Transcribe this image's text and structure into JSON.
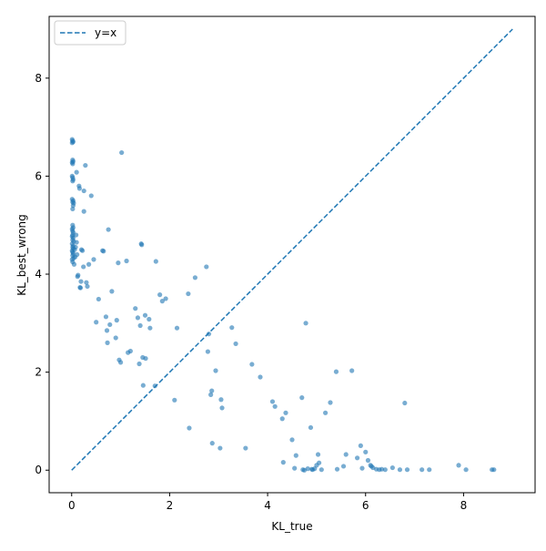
{
  "chart_data": {
    "type": "scatter",
    "title": "",
    "xlabel": "KL_true",
    "ylabel": "KL_best_wrong",
    "xlim": [
      -0.46,
      9.46
    ],
    "ylim": [
      -0.46,
      9.26
    ],
    "xticks": [
      0,
      2,
      4,
      6,
      8
    ],
    "yticks": [
      0,
      2,
      4,
      6,
      8
    ],
    "grid": false,
    "legend": {
      "position": "top-left",
      "entries": [
        "y=x"
      ]
    },
    "colors": {
      "points": "#1f77b4",
      "reference_line": "#1f77b4"
    },
    "reference_line": {
      "name": "y=x",
      "style": "dashed",
      "x": [
        0,
        9
      ],
      "y": [
        0,
        9
      ]
    },
    "series": [
      {
        "type": "scatter",
        "points": [
          [
            0.01,
            6.75
          ],
          [
            0.02,
            6.72
          ],
          [
            0.03,
            6.7
          ],
          [
            0.01,
            6.68
          ],
          [
            0.02,
            6.33
          ],
          [
            0.03,
            6.3
          ],
          [
            0.01,
            6.28
          ],
          [
            0.02,
            6.25
          ],
          [
            0.01,
            6.0
          ],
          [
            0.02,
            5.97
          ],
          [
            0.03,
            5.93
          ],
          [
            0.02,
            5.9
          ],
          [
            0.01,
            5.53
          ],
          [
            0.03,
            5.5
          ],
          [
            0.02,
            5.47
          ],
          [
            0.04,
            5.45
          ],
          [
            0.03,
            5.4
          ],
          [
            0.02,
            5.33
          ],
          [
            0.02,
            5.0
          ],
          [
            0.03,
            4.95
          ],
          [
            0.01,
            4.92
          ],
          [
            0.02,
            4.88
          ],
          [
            0.03,
            4.85
          ],
          [
            0.02,
            4.8
          ],
          [
            0.01,
            4.77
          ],
          [
            0.03,
            4.74
          ],
          [
            0.02,
            4.7
          ],
          [
            0.04,
            4.67
          ],
          [
            0.01,
            4.62
          ],
          [
            0.03,
            4.58
          ],
          [
            0.02,
            4.55
          ],
          [
            0.03,
            4.52
          ],
          [
            0.01,
            4.48
          ],
          [
            0.02,
            4.45
          ],
          [
            0.03,
            4.42
          ],
          [
            0.02,
            4.38
          ],
          [
            0.04,
            4.33
          ],
          [
            0.01,
            4.3
          ],
          [
            0.02,
            4.25
          ],
          [
            0.05,
            4.2
          ],
          [
            0.06,
            4.5
          ],
          [
            0.07,
            4.35
          ],
          [
            0.08,
            4.55
          ],
          [
            0.09,
            4.8
          ],
          [
            0.1,
            4.65
          ],
          [
            0.11,
            4.4
          ],
          [
            0.12,
            3.95
          ],
          [
            0.13,
            3.98
          ],
          [
            0.1,
            6.08
          ],
          [
            0.15,
            5.8
          ],
          [
            0.16,
            5.75
          ],
          [
            0.17,
            3.73
          ],
          [
            0.18,
            3.72
          ],
          [
            0.19,
            3.85
          ],
          [
            0.2,
            4.5
          ],
          [
            0.22,
            4.48
          ],
          [
            0.24,
            4.15
          ],
          [
            0.25,
            5.7
          ],
          [
            0.25,
            5.28
          ],
          [
            0.28,
            6.22
          ],
          [
            0.3,
            3.83
          ],
          [
            0.32,
            3.75
          ],
          [
            0.35,
            4.2
          ],
          [
            0.4,
            5.6
          ],
          [
            0.45,
            4.3
          ],
          [
            0.5,
            3.02
          ],
          [
            0.55,
            3.49
          ],
          [
            0.63,
            4.48
          ],
          [
            0.65,
            4.47
          ],
          [
            0.7,
            3.13
          ],
          [
            0.72,
            2.85
          ],
          [
            0.73,
            2.6
          ],
          [
            0.75,
            4.91
          ],
          [
            0.78,
            2.97
          ],
          [
            0.82,
            3.65
          ],
          [
            0.9,
            2.7
          ],
          [
            0.92,
            3.06
          ],
          [
            0.95,
            4.23
          ],
          [
            0.97,
            2.25
          ],
          [
            1.0,
            2.2
          ],
          [
            1.02,
            6.48
          ],
          [
            1.12,
            4.27
          ],
          [
            1.15,
            2.4
          ],
          [
            1.2,
            2.43
          ],
          [
            1.3,
            3.3
          ],
          [
            1.35,
            3.11
          ],
          [
            1.38,
            2.17
          ],
          [
            1.4,
            2.95
          ],
          [
            1.42,
            4.62
          ],
          [
            1.43,
            4.6
          ],
          [
            1.45,
            2.3
          ],
          [
            1.46,
            1.73
          ],
          [
            1.5,
            3.16
          ],
          [
            1.51,
            2.28
          ],
          [
            1.58,
            3.08
          ],
          [
            1.6,
            2.9
          ],
          [
            1.7,
            1.72
          ],
          [
            1.72,
            4.26
          ],
          [
            1.8,
            3.58
          ],
          [
            1.85,
            3.45
          ],
          [
            1.92,
            3.5
          ],
          [
            2.1,
            1.43
          ],
          [
            2.15,
            2.9
          ],
          [
            2.38,
            3.6
          ],
          [
            2.4,
            0.86
          ],
          [
            2.52,
            3.93
          ],
          [
            2.75,
            4.15
          ],
          [
            2.78,
            2.42
          ],
          [
            2.8,
            2.78
          ],
          [
            2.84,
            1.54
          ],
          [
            2.86,
            1.62
          ],
          [
            2.87,
            0.55
          ],
          [
            2.94,
            2.03
          ],
          [
            3.03,
            0.45
          ],
          [
            3.05,
            1.44
          ],
          [
            3.07,
            1.27
          ],
          [
            3.27,
            2.91
          ],
          [
            3.35,
            2.58
          ],
          [
            3.55,
            0.45
          ],
          [
            3.68,
            2.16
          ],
          [
            3.85,
            1.9
          ],
          [
            4.1,
            1.4
          ],
          [
            4.15,
            1.3
          ],
          [
            4.3,
            1.05
          ],
          [
            4.32,
            0.16
          ],
          [
            4.37,
            1.17
          ],
          [
            4.5,
            0.62
          ],
          [
            4.55,
            0.04
          ],
          [
            4.58,
            0.3
          ],
          [
            4.7,
            1.48
          ],
          [
            4.72,
            0.01
          ],
          [
            4.75,
            0.0
          ],
          [
            4.78,
            3.0
          ],
          [
            4.82,
            0.03
          ],
          [
            4.88,
            0.87
          ],
          [
            4.9,
            0.02
          ],
          [
            4.92,
            0.01
          ],
          [
            4.96,
            0.03
          ],
          [
            5.0,
            0.1
          ],
          [
            5.03,
            0.32
          ],
          [
            5.05,
            0.15
          ],
          [
            5.1,
            0.01
          ],
          [
            5.18,
            1.17
          ],
          [
            5.28,
            1.38
          ],
          [
            5.4,
            2.01
          ],
          [
            5.42,
            0.02
          ],
          [
            5.55,
            0.08
          ],
          [
            5.6,
            0.32
          ],
          [
            5.72,
            2.03
          ],
          [
            5.83,
            0.25
          ],
          [
            5.9,
            0.5
          ],
          [
            5.93,
            0.04
          ],
          [
            6.0,
            0.37
          ],
          [
            6.05,
            0.2
          ],
          [
            6.1,
            0.1
          ],
          [
            6.12,
            0.08
          ],
          [
            6.15,
            0.05
          ],
          [
            6.22,
            0.02
          ],
          [
            6.28,
            0.01
          ],
          [
            6.33,
            0.02
          ],
          [
            6.4,
            0.01
          ],
          [
            6.55,
            0.05
          ],
          [
            6.7,
            0.01
          ],
          [
            6.8,
            1.37
          ],
          [
            6.85,
            0.01
          ],
          [
            7.15,
            0.01
          ],
          [
            7.3,
            0.01
          ],
          [
            7.9,
            0.1
          ],
          [
            8.05,
            0.01
          ],
          [
            8.58,
            0.01
          ],
          [
            8.62,
            0.01
          ]
        ]
      }
    ]
  }
}
